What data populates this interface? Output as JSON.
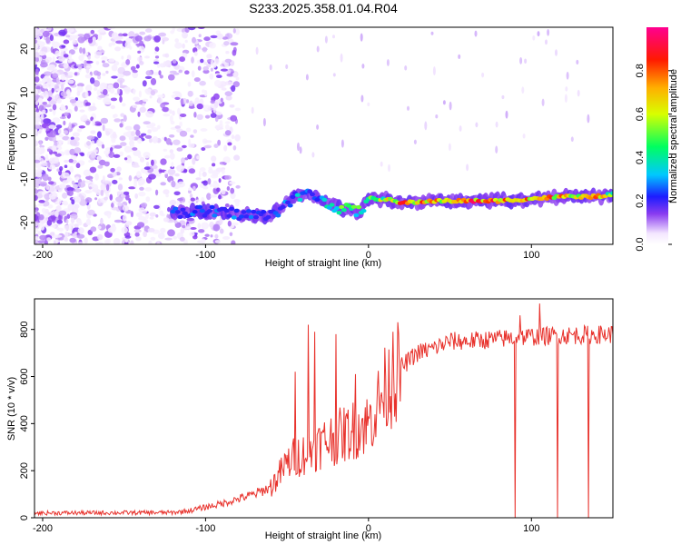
{
  "figure_title": "S233.2025.358.01.04.R04",
  "chart_data": [
    {
      "type": "heatmap",
      "title": "S233.2025.358.01.04.R04",
      "xlabel": "Height of straight line (km)",
      "ylabel": "Frequency (Hz)",
      "xlim": [
        -205,
        150
      ],
      "ylim": [
        -25,
        25
      ],
      "xticks": [
        -200,
        -100,
        0,
        100
      ],
      "yticks": [
        -20,
        -10,
        0,
        10,
        20
      ],
      "colorbar": {
        "label": "Normalized spectral amplitude",
        "range": [
          0,
          1
        ],
        "ticks": [
          0.0,
          0.2,
          0.4,
          0.6,
          0.8
        ],
        "tick_labels": [
          "0.0",
          "0.2",
          "0.4",
          "0.6",
          "0.8"
        ]
      },
      "ridge": {
        "x": [
          -120,
          -100,
          -80,
          -60,
          -45,
          -35,
          -25,
          -15,
          -5,
          0,
          10,
          20,
          40,
          60,
          80,
          100,
          120,
          140,
          150
        ],
        "freq": [
          -17.5,
          -17.5,
          -18,
          -18.5,
          -14,
          -13.5,
          -15.5,
          -17,
          -17.5,
          -14.5,
          -14.5,
          -15.5,
          -15,
          -15,
          -15,
          -14.5,
          -14,
          -14,
          -13.5
        ],
        "amplitude": [
          0.25,
          0.3,
          0.3,
          0.25,
          0.35,
          0.3,
          0.45,
          0.55,
          0.5,
          0.55,
          0.65,
          0.85,
          0.8,
          0.95,
          0.9,
          0.8,
          0.9,
          0.8,
          0.6
        ]
      }
    },
    {
      "type": "line",
      "xlabel": "Height of straight line (km)",
      "ylabel": "SNR (10 * v/v)",
      "xlim": [
        -205,
        150
      ],
      "ylim": [
        0,
        930
      ],
      "xticks": [
        -200,
        -100,
        0,
        100
      ],
      "yticks": [
        0,
        200,
        400,
        600,
        800
      ],
      "color": "#e8322c",
      "trend": {
        "x": [
          -205,
          -120,
          -110,
          -100,
          -90,
          -80,
          -70,
          -60,
          -55,
          -50,
          -45,
          -40,
          -35,
          -30,
          -25,
          -20,
          -15,
          -10,
          -5,
          0,
          5,
          10,
          15,
          20,
          30,
          40,
          50,
          60,
          80,
          100,
          120,
          150
        ],
        "snr": [
          20,
          22,
          30,
          45,
          60,
          80,
          100,
          130,
          180,
          230,
          260,
          270,
          290,
          310,
          330,
          340,
          355,
          370,
          390,
          400,
          470,
          540,
          590,
          640,
          700,
          720,
          750,
          750,
          760,
          770,
          775,
          780
        ]
      },
      "spikes": [
        {
          "x": -45,
          "snr": 620
        },
        {
          "x": -37,
          "snr": 820
        },
        {
          "x": -33,
          "snr": 790
        },
        {
          "x": -20,
          "snr": 780
        },
        {
          "x": -8,
          "snr": 610
        },
        {
          "x": 15,
          "snr": 790
        },
        {
          "x": 93,
          "snr": 860
        },
        {
          "x": 105,
          "snr": 910
        }
      ],
      "dropouts": [
        {
          "x": 90,
          "snr": 0
        },
        {
          "x": 116,
          "snr": 0
        },
        {
          "x": 135,
          "snr": 0
        }
      ]
    }
  ]
}
